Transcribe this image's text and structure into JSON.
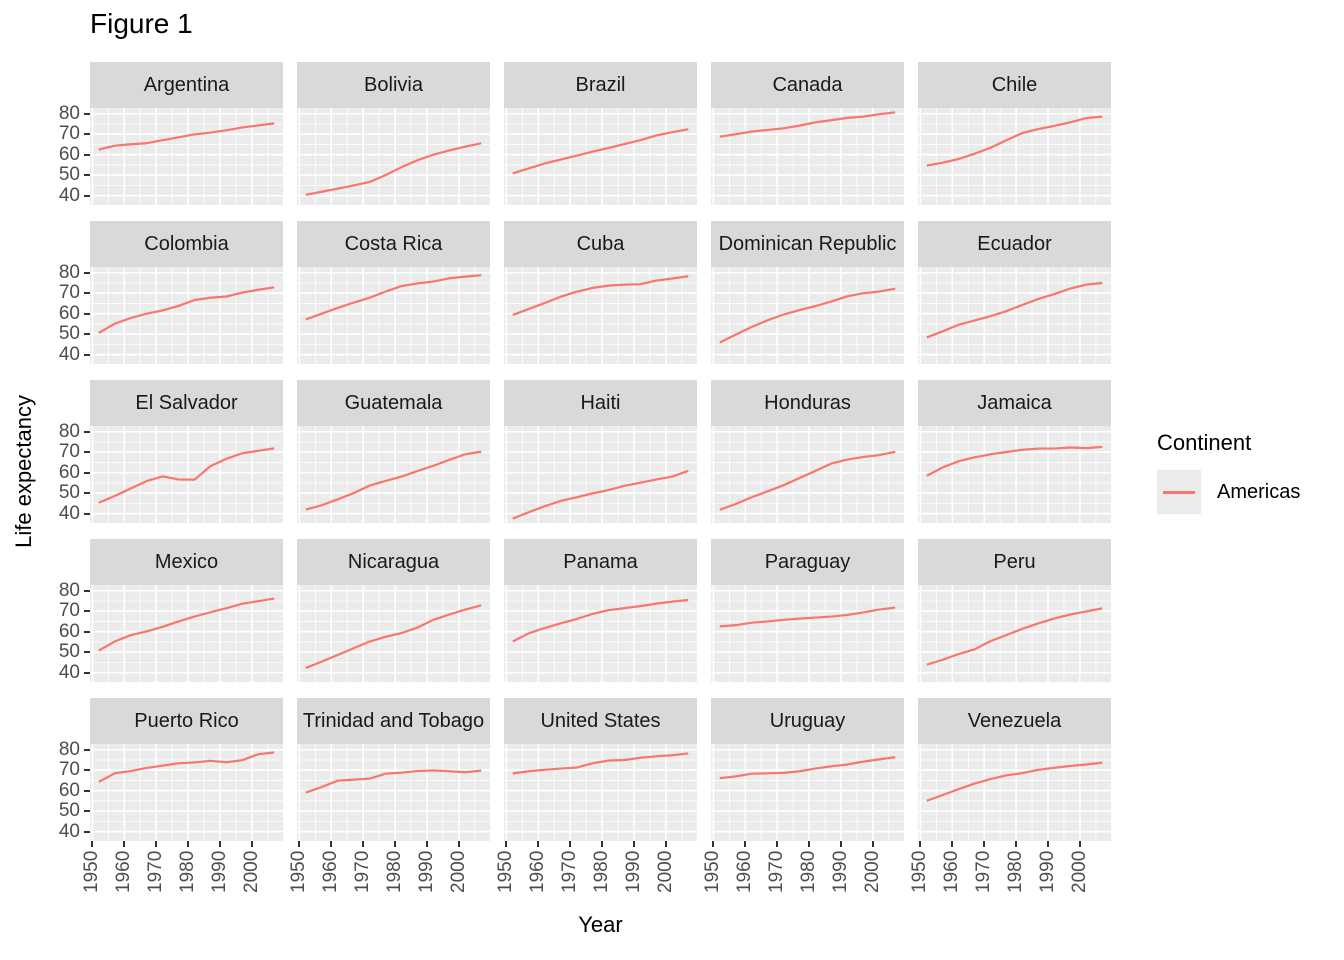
{
  "title": "Figure 1",
  "colors": {
    "line": "#F8766D",
    "panel_bg": "#EBEBEB",
    "strip_bg": "#D9D9D9",
    "grid": "#FFFFFF",
    "tick_text": "#4D4D4D",
    "strip_text": "#1A1A1A",
    "tick_mark": "#333333",
    "legend_key_bg": "#EBEBEB"
  },
  "chart_data": {
    "type": "line",
    "title": "Figure 1",
    "xlabel": "Year",
    "ylabel": "Life expectancy",
    "legend": {
      "title": "Continent",
      "series_label": "Americas",
      "position": "right"
    },
    "grid": true,
    "facet_layout": {
      "rows": 5,
      "cols": 5
    },
    "x_years": [
      1952,
      1957,
      1962,
      1967,
      1972,
      1977,
      1982,
      1987,
      1992,
      1997,
      2002,
      2007
    ],
    "x_ticks": [
      1950,
      1960,
      1970,
      1980,
      1990,
      2000
    ],
    "x_minor_ticks": [
      1955,
      1965,
      1975,
      1985,
      1995,
      2005
    ],
    "y_ticks": [
      80,
      70,
      60,
      50,
      40
    ],
    "y_minor_ticks": [
      75,
      65,
      55,
      45
    ],
    "x_range": [
      1949.25,
      2009.75
    ],
    "y_range": [
      35.43,
      82.81
    ],
    "facets": [
      {
        "country": "Argentina",
        "life_exp": [
          62.5,
          64.4,
          65.1,
          65.6,
          67.1,
          68.5,
          69.9,
          70.8,
          71.9,
          73.3,
          74.3,
          75.3
        ]
      },
      {
        "country": "Bolivia",
        "life_exp": [
          40.4,
          41.9,
          43.4,
          45.0,
          46.7,
          50.0,
          53.9,
          57.3,
          60.0,
          62.1,
          63.9,
          65.6
        ]
      },
      {
        "country": "Brazil",
        "life_exp": [
          50.9,
          53.3,
          55.7,
          57.6,
          59.5,
          61.5,
          63.3,
          65.2,
          67.1,
          69.4,
          71.0,
          72.4
        ]
      },
      {
        "country": "Canada",
        "life_exp": [
          68.8,
          70.0,
          71.3,
          72.1,
          72.9,
          74.2,
          75.8,
          76.9,
          78.0,
          78.6,
          79.8,
          80.7
        ]
      },
      {
        "country": "Chile",
        "life_exp": [
          54.7,
          56.1,
          57.9,
          60.5,
          63.4,
          67.1,
          70.6,
          72.5,
          74.1,
          75.8,
          77.9,
          78.6
        ]
      },
      {
        "country": "Colombia",
        "life_exp": [
          50.6,
          55.1,
          57.9,
          60.0,
          61.6,
          63.8,
          66.7,
          67.8,
          68.4,
          70.3,
          71.7,
          72.9
        ]
      },
      {
        "country": "Costa Rica",
        "life_exp": [
          57.2,
          60.0,
          62.8,
          65.4,
          67.8,
          70.8,
          73.5,
          74.8,
          75.7,
          77.3,
          78.1,
          78.8
        ]
      },
      {
        "country": "Cuba",
        "life_exp": [
          59.4,
          62.3,
          65.2,
          68.3,
          70.7,
          72.6,
          73.7,
          74.2,
          74.4,
          76.2,
          77.2,
          78.3
        ]
      },
      {
        "country": "Dominican Republic",
        "life_exp": [
          45.9,
          49.8,
          53.5,
          56.8,
          59.6,
          61.8,
          63.7,
          66.0,
          68.5,
          70.0,
          70.8,
          72.2
        ]
      },
      {
        "country": "Ecuador",
        "life_exp": [
          48.4,
          51.4,
          54.6,
          56.7,
          58.8,
          61.3,
          64.3,
          67.2,
          69.6,
          72.3,
          74.2,
          75.0
        ]
      },
      {
        "country": "El Salvador",
        "life_exp": [
          45.3,
          48.6,
          52.3,
          55.9,
          58.2,
          56.7,
          56.6,
          63.2,
          66.8,
          69.5,
          70.7,
          71.9
        ]
      },
      {
        "country": "Guatemala",
        "life_exp": [
          42.0,
          44.1,
          47.0,
          50.0,
          53.7,
          56.0,
          58.1,
          60.8,
          63.4,
          66.3,
          69.0,
          70.3
        ]
      },
      {
        "country": "Haiti",
        "life_exp": [
          37.6,
          40.7,
          43.6,
          46.2,
          48.0,
          49.9,
          51.5,
          53.6,
          55.1,
          56.7,
          58.1,
          60.9
        ]
      },
      {
        "country": "Honduras",
        "life_exp": [
          41.9,
          44.7,
          48.0,
          50.9,
          53.9,
          57.4,
          60.9,
          64.5,
          66.4,
          67.7,
          68.6,
          70.2
        ]
      },
      {
        "country": "Jamaica",
        "life_exp": [
          58.5,
          62.6,
          65.6,
          67.5,
          69.0,
          70.1,
          71.2,
          71.8,
          71.8,
          72.3,
          72.0,
          72.6
        ]
      },
      {
        "country": "Mexico",
        "life_exp": [
          50.8,
          55.2,
          58.3,
          60.1,
          62.4,
          65.0,
          67.4,
          69.5,
          71.5,
          73.7,
          74.9,
          76.2
        ]
      },
      {
        "country": "Nicaragua",
        "life_exp": [
          42.3,
          45.4,
          48.6,
          51.9,
          55.2,
          57.5,
          59.3,
          62.0,
          65.8,
          68.4,
          70.8,
          72.9
        ]
      },
      {
        "country": "Panama",
        "life_exp": [
          55.2,
          59.2,
          61.8,
          64.1,
          66.2,
          68.7,
          70.5,
          71.5,
          72.5,
          73.7,
          74.7,
          75.5
        ]
      },
      {
        "country": "Paraguay",
        "life_exp": [
          62.6,
          63.2,
          64.4,
          65.0,
          65.8,
          66.4,
          66.9,
          67.4,
          68.2,
          69.4,
          70.8,
          71.8
        ]
      },
      {
        "country": "Peru",
        "life_exp": [
          43.9,
          46.3,
          49.1,
          51.4,
          55.4,
          58.4,
          61.4,
          64.1,
          66.5,
          68.4,
          69.9,
          71.4
        ]
      },
      {
        "country": "Puerto Rico",
        "life_exp": [
          64.3,
          68.5,
          69.6,
          71.1,
          72.2,
          73.4,
          73.8,
          74.6,
          73.9,
          74.9,
          77.8,
          78.7
        ]
      },
      {
        "country": "Trinidad and Tobago",
        "life_exp": [
          59.1,
          61.8,
          64.9,
          65.4,
          65.9,
          68.3,
          68.8,
          69.6,
          69.9,
          69.5,
          69.0,
          69.8
        ]
      },
      {
        "country": "United States",
        "life_exp": [
          68.4,
          69.5,
          70.2,
          70.8,
          71.3,
          73.4,
          74.7,
          75.0,
          76.1,
          76.8,
          77.3,
          78.2
        ]
      },
      {
        "country": "Uruguay",
        "life_exp": [
          66.1,
          67.0,
          68.3,
          68.5,
          68.7,
          69.5,
          70.8,
          71.9,
          72.8,
          74.2,
          75.3,
          76.4
        ]
      },
      {
        "country": "Venezuela",
        "life_exp": [
          55.1,
          57.9,
          60.8,
          63.5,
          65.7,
          67.5,
          68.6,
          70.2,
          71.2,
          72.1,
          72.8,
          73.7
        ]
      }
    ]
  }
}
